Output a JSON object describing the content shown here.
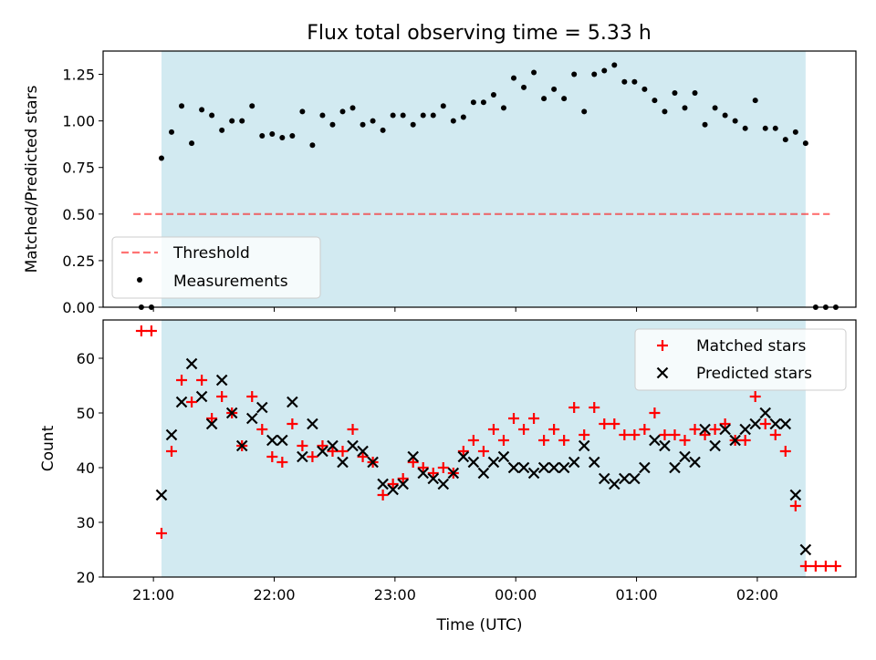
{
  "title": "Flux total observing time = 5.33 h",
  "colors": {
    "shade": "#add8e6",
    "threshold": "#ff0000",
    "measurements": "#000000",
    "matched": "#ff0000",
    "predicted": "#000000"
  },
  "chart_data": [
    {
      "type": "scatter",
      "ylabel": "Matched/Predicted stars",
      "ylim": [
        0,
        1.375
      ],
      "yticks": [
        "0.00",
        "0.25",
        "0.50",
        "0.75",
        "1.00",
        "1.25"
      ],
      "shaded_interval": [
        "21:04",
        "02:24"
      ],
      "threshold": 0.5,
      "threshold_x": [
        "20:50",
        "02:36"
      ],
      "legend": {
        "placement": "lower left",
        "threshold_label": "Threshold",
        "measurements_label": "Measurements"
      },
      "measurements": [
        [
          "20:54",
          0.0
        ],
        [
          "20:59",
          0.0
        ],
        [
          "21:04",
          0.8
        ],
        [
          "21:09",
          0.94
        ],
        [
          "21:14",
          1.08
        ],
        [
          "21:19",
          0.88
        ],
        [
          "21:24",
          1.06
        ],
        [
          "21:29",
          1.03
        ],
        [
          "21:34",
          0.95
        ],
        [
          "21:39",
          1.0
        ],
        [
          "21:44",
          1.0
        ],
        [
          "21:49",
          1.08
        ],
        [
          "21:54",
          0.92
        ],
        [
          "21:59",
          0.93
        ],
        [
          "22:04",
          0.91
        ],
        [
          "22:09",
          0.92
        ],
        [
          "22:14",
          1.05
        ],
        [
          "22:19",
          0.87
        ],
        [
          "22:24",
          1.03
        ],
        [
          "22:29",
          0.98
        ],
        [
          "22:34",
          1.05
        ],
        [
          "22:39",
          1.07
        ],
        [
          "22:44",
          0.98
        ],
        [
          "22:49",
          1.0
        ],
        [
          "22:54",
          0.95
        ],
        [
          "22:59",
          1.03
        ],
        [
          "23:04",
          1.03
        ],
        [
          "23:09",
          0.98
        ],
        [
          "23:14",
          1.03
        ],
        [
          "23:19",
          1.03
        ],
        [
          "23:24",
          1.08
        ],
        [
          "23:29",
          1.0
        ],
        [
          "23:34",
          1.02
        ],
        [
          "23:39",
          1.1
        ],
        [
          "23:44",
          1.1
        ],
        [
          "23:49",
          1.14
        ],
        [
          "23:54",
          1.07
        ],
        [
          "23:59",
          1.23
        ],
        [
          "00:04",
          1.18
        ],
        [
          "00:09",
          1.26
        ],
        [
          "00:14",
          1.12
        ],
        [
          "00:19",
          1.17
        ],
        [
          "00:24",
          1.12
        ],
        [
          "00:29",
          1.25
        ],
        [
          "00:34",
          1.05
        ],
        [
          "00:39",
          1.25
        ],
        [
          "00:44",
          1.27
        ],
        [
          "00:49",
          1.3
        ],
        [
          "00:54",
          1.21
        ],
        [
          "00:59",
          1.21
        ],
        [
          "01:04",
          1.17
        ],
        [
          "01:09",
          1.11
        ],
        [
          "01:14",
          1.05
        ],
        [
          "01:19",
          1.15
        ],
        [
          "01:24",
          1.07
        ],
        [
          "01:29",
          1.15
        ],
        [
          "01:34",
          0.98
        ],
        [
          "01:39",
          1.07
        ],
        [
          "01:44",
          1.03
        ],
        [
          "01:49",
          1.0
        ],
        [
          "01:54",
          0.96
        ],
        [
          "01:59",
          1.11
        ],
        [
          "02:04",
          0.96
        ],
        [
          "02:09",
          0.96
        ],
        [
          "02:14",
          0.9
        ],
        [
          "02:19",
          0.94
        ],
        [
          "02:24",
          0.88
        ],
        [
          "02:29",
          0.0
        ],
        [
          "02:34",
          0.0
        ],
        [
          "02:39",
          0.0
        ]
      ]
    },
    {
      "type": "scatter",
      "xlabel": "Time (UTC)",
      "ylabel": "Count",
      "xlim": [
        "20:35",
        "02:49"
      ],
      "xticks": [
        "21:00",
        "22:00",
        "23:00",
        "00:00",
        "01:00",
        "02:00"
      ],
      "ylim": [
        20,
        67
      ],
      "yticks": [
        "20",
        "30",
        "40",
        "50",
        "60"
      ],
      "legend": {
        "placement": "upper right",
        "matched_label": "Matched stars",
        "predicted_label": "Predicted stars"
      },
      "series": [
        {
          "name": "Matched stars",
          "points": [
            [
              "20:54",
              65
            ],
            [
              "20:59",
              65
            ],
            [
              "21:04",
              28
            ],
            [
              "21:09",
              43
            ],
            [
              "21:14",
              56
            ],
            [
              "21:19",
              52
            ],
            [
              "21:24",
              56
            ],
            [
              "21:29",
              49
            ],
            [
              "21:34",
              53
            ],
            [
              "21:39",
              50
            ],
            [
              "21:44",
              44
            ],
            [
              "21:49",
              53
            ],
            [
              "21:54",
              47
            ],
            [
              "21:59",
              42
            ],
            [
              "22:04",
              41
            ],
            [
              "22:09",
              48
            ],
            [
              "22:14",
              44
            ],
            [
              "22:19",
              42
            ],
            [
              "22:24",
              44
            ],
            [
              "22:29",
              43
            ],
            [
              "22:34",
              43
            ],
            [
              "22:39",
              47
            ],
            [
              "22:44",
              42
            ],
            [
              "22:49",
              41
            ],
            [
              "22:54",
              35
            ],
            [
              "22:59",
              37
            ],
            [
              "23:04",
              38
            ],
            [
              "23:09",
              41
            ],
            [
              "23:14",
              40
            ],
            [
              "23:19",
              39
            ],
            [
              "23:24",
              40
            ],
            [
              "23:29",
              39
            ],
            [
              "23:34",
              43
            ],
            [
              "23:39",
              45
            ],
            [
              "23:44",
              43
            ],
            [
              "23:49",
              47
            ],
            [
              "23:54",
              45
            ],
            [
              "23:59",
              49
            ],
            [
              "00:04",
              47
            ],
            [
              "00:09",
              49
            ],
            [
              "00:14",
              45
            ],
            [
              "00:19",
              47
            ],
            [
              "00:24",
              45
            ],
            [
              "00:29",
              51
            ],
            [
              "00:34",
              46
            ],
            [
              "00:39",
              51
            ],
            [
              "00:44",
              48
            ],
            [
              "00:49",
              48
            ],
            [
              "00:54",
              46
            ],
            [
              "00:59",
              46
            ],
            [
              "01:04",
              47
            ],
            [
              "01:09",
              50
            ],
            [
              "01:14",
              46
            ],
            [
              "01:19",
              46
            ],
            [
              "01:24",
              45
            ],
            [
              "01:29",
              47
            ],
            [
              "01:34",
              46
            ],
            [
              "01:39",
              47
            ],
            [
              "01:44",
              48
            ],
            [
              "01:49",
              45
            ],
            [
              "01:54",
              45
            ],
            [
              "01:59",
              53
            ],
            [
              "02:04",
              48
            ],
            [
              "02:09",
              46
            ],
            [
              "02:14",
              43
            ],
            [
              "02:19",
              33
            ],
            [
              "02:24",
              22
            ],
            [
              "02:29",
              22
            ],
            [
              "02:34",
              22
            ],
            [
              "02:39",
              22
            ]
          ]
        },
        {
          "name": "Predicted stars",
          "points": [
            [
              "21:04",
              35
            ],
            [
              "21:09",
              46
            ],
            [
              "21:14",
              52
            ],
            [
              "21:19",
              59
            ],
            [
              "21:24",
              53
            ],
            [
              "21:29",
              48
            ],
            [
              "21:34",
              56
            ],
            [
              "21:39",
              50
            ],
            [
              "21:44",
              44
            ],
            [
              "21:49",
              49
            ],
            [
              "21:54",
              51
            ],
            [
              "21:59",
              45
            ],
            [
              "22:04",
              45
            ],
            [
              "22:09",
              52
            ],
            [
              "22:14",
              42
            ],
            [
              "22:19",
              48
            ],
            [
              "22:24",
              43
            ],
            [
              "22:29",
              44
            ],
            [
              "22:34",
              41
            ],
            [
              "22:39",
              44
            ],
            [
              "22:44",
              43
            ],
            [
              "22:49",
              41
            ],
            [
              "22:54",
              37
            ],
            [
              "22:59",
              36
            ],
            [
              "23:04",
              37
            ],
            [
              "23:09",
              42
            ],
            [
              "23:14",
              39
            ],
            [
              "23:19",
              38
            ],
            [
              "23:24",
              37
            ],
            [
              "23:29",
              39
            ],
            [
              "23:34",
              42
            ],
            [
              "23:39",
              41
            ],
            [
              "23:44",
              39
            ],
            [
              "23:49",
              41
            ],
            [
              "23:54",
              42
            ],
            [
              "23:59",
              40
            ],
            [
              "00:04",
              40
            ],
            [
              "00:09",
              39
            ],
            [
              "00:14",
              40
            ],
            [
              "00:19",
              40
            ],
            [
              "00:24",
              40
            ],
            [
              "00:29",
              41
            ],
            [
              "00:34",
              44
            ],
            [
              "00:39",
              41
            ],
            [
              "00:44",
              38
            ],
            [
              "00:49",
              37
            ],
            [
              "00:54",
              38
            ],
            [
              "00:59",
              38
            ],
            [
              "01:04",
              40
            ],
            [
              "01:09",
              45
            ],
            [
              "01:14",
              44
            ],
            [
              "01:19",
              40
            ],
            [
              "01:24",
              42
            ],
            [
              "01:29",
              41
            ],
            [
              "01:34",
              47
            ],
            [
              "01:39",
              44
            ],
            [
              "01:44",
              47
            ],
            [
              "01:49",
              45
            ],
            [
              "01:54",
              47
            ],
            [
              "01:59",
              48
            ],
            [
              "02:04",
              50
            ],
            [
              "02:09",
              48
            ],
            [
              "02:14",
              48
            ],
            [
              "02:19",
              35
            ],
            [
              "02:24",
              25
            ]
          ]
        }
      ]
    }
  ]
}
